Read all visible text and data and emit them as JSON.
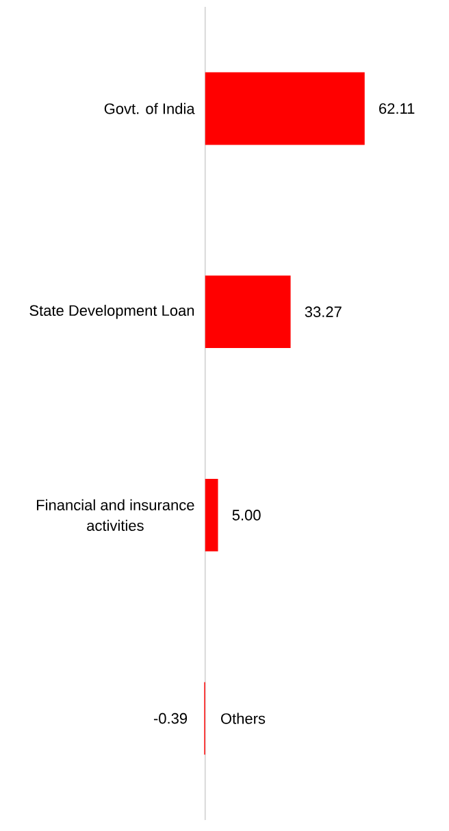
{
  "chart_data": {
    "type": "bar",
    "orientation": "horizontal",
    "categories": [
      "Govt. of India",
      "State Development Loan",
      "Financial and insurance activities",
      "Others"
    ],
    "values": [
      62.11,
      33.27,
      5.0,
      -0.39
    ],
    "value_labels": [
      "62.11",
      "33.27",
      "5.00",
      "-0.39"
    ],
    "color": "#ff0000"
  }
}
